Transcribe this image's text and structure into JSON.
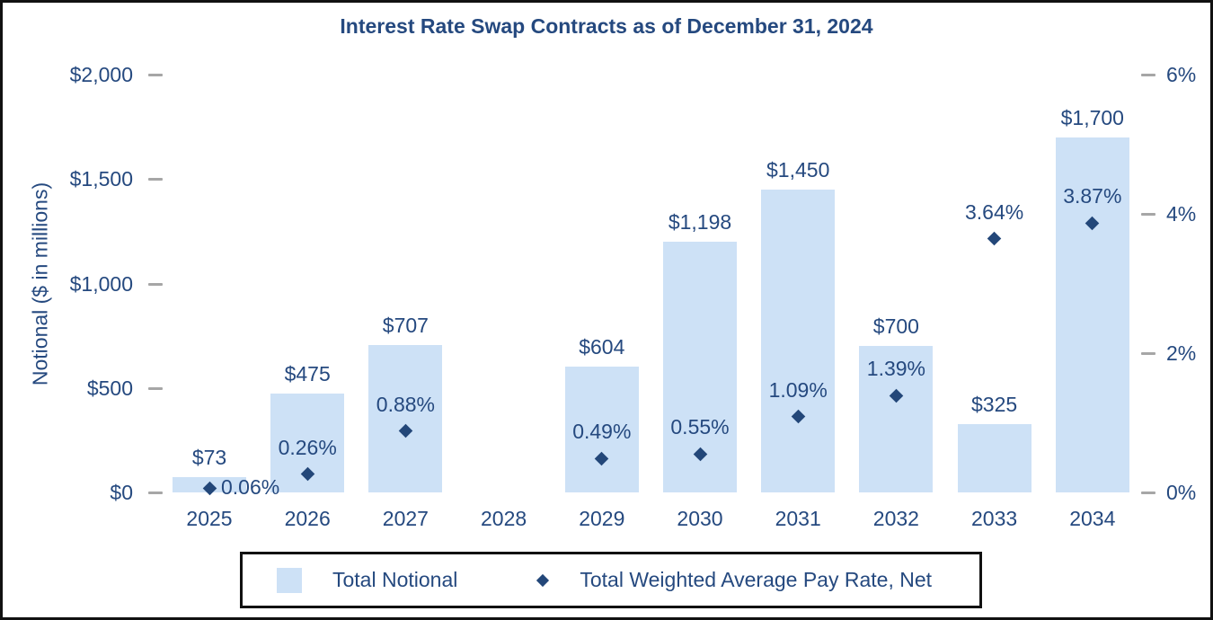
{
  "chart_data": {
    "type": "bar",
    "subtype": "bar-and-scatter-combo",
    "title": "Interest Rate Swap Contracts as of December 31, 2024",
    "categories": [
      "2025",
      "2026",
      "2027",
      "2028",
      "2029",
      "2030",
      "2031",
      "2032",
      "2033",
      "2034"
    ],
    "series": [
      {
        "name": "Total Notional",
        "type": "bar",
        "axis": "left",
        "values": [
          73,
          475,
          707,
          null,
          604,
          1198,
          1450,
          700,
          325,
          1700
        ],
        "labels": [
          "$73",
          "$475",
          "$707",
          null,
          "$604",
          "$1,198",
          "$1,450",
          "$700",
          "$325",
          "$1,700"
        ]
      },
      {
        "name": "Total Weighted Average Pay Rate, Net",
        "type": "scatter",
        "marker": "diamond",
        "axis": "right",
        "values": [
          0.06,
          0.26,
          0.88,
          null,
          0.49,
          0.55,
          1.09,
          1.39,
          3.64,
          3.87
        ],
        "labels": [
          "0.06%",
          "0.26%",
          "0.88%",
          null,
          "0.49%",
          "0.55%",
          "1.09%",
          "1.39%",
          "3.64%",
          "3.87%"
        ]
      }
    ],
    "left_axis": {
      "title": "Notional ($ in millions)",
      "ticks": [
        "$0",
        "$500",
        "$1,000",
        "$1,500",
        "$2,000"
      ],
      "tick_values": [
        0,
        500,
        1000,
        1500,
        2000
      ],
      "range": [
        0,
        2000
      ]
    },
    "right_axis": {
      "ticks": [
        "0%",
        "2%",
        "4%",
        "6%"
      ],
      "tick_values": [
        0,
        2,
        4,
        6
      ],
      "range": [
        0,
        6
      ]
    },
    "legend": {
      "position": "bottom",
      "items": [
        {
          "label": "Total Notional",
          "marker": "square"
        },
        {
          "label": "Total Weighted Average Pay Rate, Net",
          "marker": "diamond"
        }
      ]
    },
    "grid": "off",
    "colors": {
      "bar_fill": "#cde1f6",
      "marker_fill": "#234779",
      "text": "#25497f",
      "tick_dash": "#a6a6a6",
      "border": "#111111"
    }
  }
}
